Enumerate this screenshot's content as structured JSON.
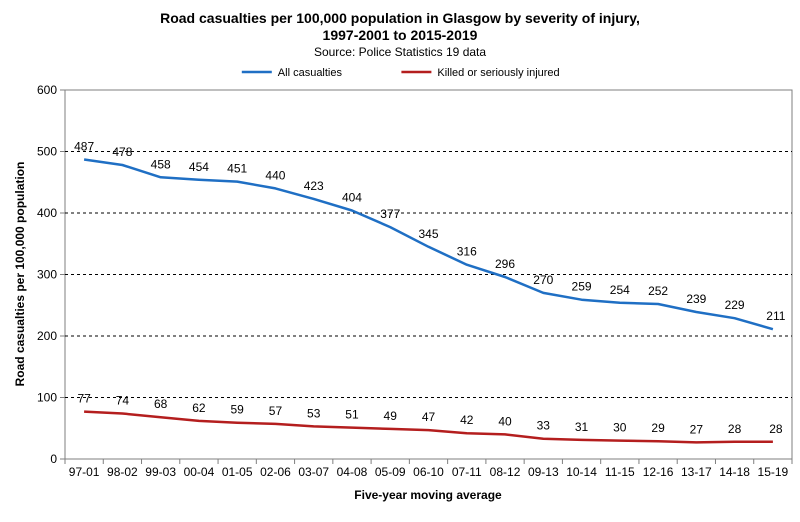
{
  "chart_data": {
    "type": "line",
    "title_line1": "Road casualties per 100,000 population in Glasgow by severity of injury,",
    "title_line2": "1997-2001 to 2015-2019",
    "subtitle": "Source: Police Statistics 19 data",
    "xlabel": "Five-year moving average",
    "ylabel": "Road casualties per 100,000 population",
    "ylim": [
      0,
      600
    ],
    "yticks": [
      0,
      100,
      200,
      300,
      400,
      500,
      600
    ],
    "grid": true,
    "legend_position": "top",
    "categories": [
      "97-01",
      "98-02",
      "99-03",
      "00-04",
      "01-05",
      "02-06",
      "03-07",
      "04-08",
      "05-09",
      "06-10",
      "07-11",
      "08-12",
      "09-13",
      "10-14",
      "11-15",
      "12-16",
      "13-17",
      "14-18",
      "15-19"
    ],
    "series": [
      {
        "name": "All casualties",
        "color": "#1F6FC4",
        "values": [
          487,
          478,
          458,
          454,
          451,
          440,
          423,
          404,
          377,
          345,
          316,
          296,
          270,
          259,
          254,
          252,
          239,
          229,
          211
        ]
      },
      {
        "name": "Killed or seriously injured",
        "color": "#B41E1E",
        "values": [
          77,
          74,
          68,
          62,
          59,
          57,
          53,
          51,
          49,
          47,
          42,
          40,
          33,
          31,
          30,
          29,
          27,
          28,
          28
        ]
      }
    ]
  }
}
